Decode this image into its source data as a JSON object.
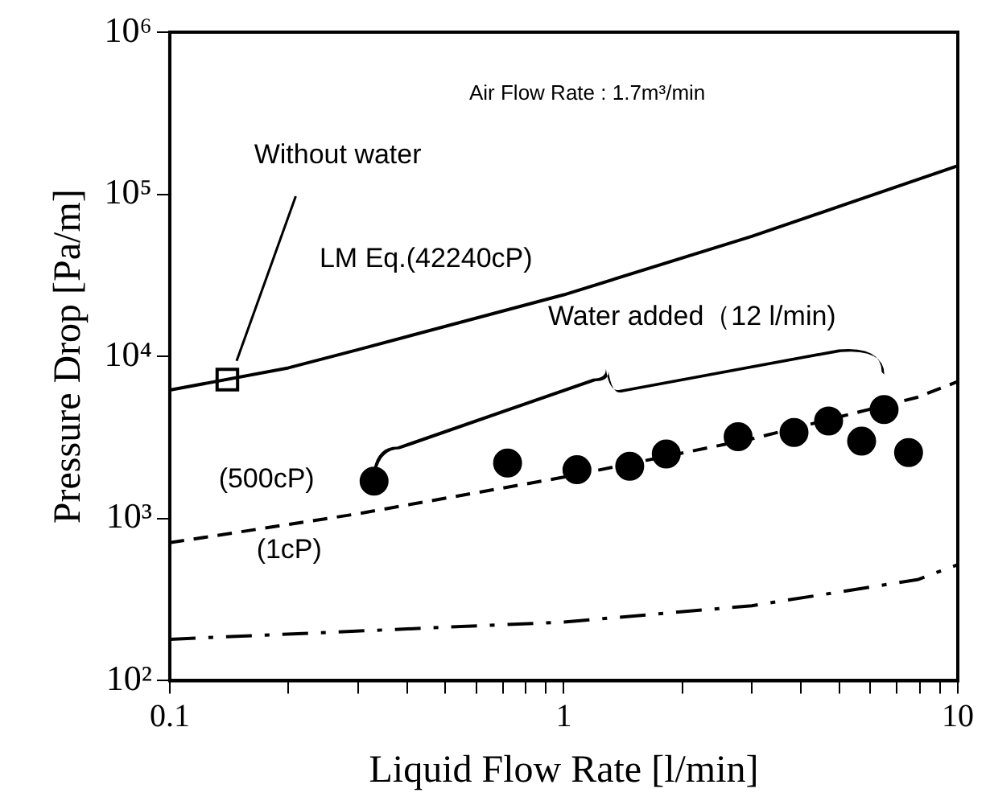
{
  "chart_data": {
    "type": "line",
    "xlabel": "Liquid Flow Rate [l/min]",
    "ylabel": "Pressure Drop [Pa/m]",
    "log": "xy",
    "grid": false,
    "legend": false,
    "xlim": [
      0.1,
      10
    ],
    "ylim": [
      100,
      1000000
    ],
    "xticks": [
      0.1,
      {
        "value": 0.2,
        "label": null
      },
      {
        "value": 0.3,
        "label": null
      },
      {
        "value": 0.4,
        "label": null
      },
      {
        "value": 0.5,
        "label": null
      },
      {
        "value": 0.6,
        "label": null
      },
      {
        "value": 0.7,
        "label": null
      },
      {
        "value": 0.8,
        "label": null
      },
      {
        "value": 0.9,
        "label": null
      },
      1,
      {
        "value": 2,
        "label": null
      },
      {
        "value": 3,
        "label": null
      },
      {
        "value": 4,
        "label": null
      },
      {
        "value": 5,
        "label": null
      },
      {
        "value": 6,
        "label": null
      },
      {
        "value": 7,
        "label": null
      },
      {
        "value": 8,
        "label": null
      },
      {
        "value": 9,
        "label": null
      },
      10
    ],
    "yticks": [
      {
        "value": 100,
        "label": "10²"
      },
      {
        "value": 1000,
        "label": "10³"
      },
      {
        "value": 10000,
        "label": "10⁴"
      },
      {
        "value": 100000,
        "label": "10⁵"
      },
      {
        "value": 1000000,
        "label": "10⁶"
      }
    ],
    "series": [
      {
        "color": "#000000",
        "line_style": "solid",
        "marker": "none",
        "x": [
          0.1,
          0.2,
          0.3,
          1,
          3,
          10
        ],
        "values": [
          6200,
          8500,
          11000,
          24000,
          55000,
          150000
        ]
      },
      {
        "color": "#000000",
        "line_style": "dashed",
        "marker": "none",
        "x": [
          0.1,
          0.3,
          1,
          3,
          7.9,
          10
        ],
        "values": [
          710,
          1070,
          1800,
          3100,
          5600,
          7000
        ]
      },
      {
        "color": "#000000",
        "line_style": "dashdot",
        "marker": "none",
        "x": [
          0.1,
          1,
          3,
          7.9,
          10
        ],
        "values": [
          180,
          230,
          290,
          420,
          520
        ]
      },
      {
        "type": "scatter",
        "color": "#ffffff",
        "marker": "square",
        "x": [
          0.14
        ],
        "values": [
          7200
        ]
      },
      {
        "type": "scatter",
        "color": "#000000",
        "marker": "circle",
        "x": [
          0.33,
          0.72,
          1.08,
          1.47,
          1.82,
          2.77,
          3.84,
          4.7,
          6.5,
          5.7,
          7.5
        ],
        "values": [
          1700,
          2200,
          2000,
          2100,
          2500,
          3200,
          3400,
          4000,
          4700,
          3000,
          2550
        ]
      }
    ],
    "annotations": [
      "Air Flow Rate : 1.7m³/min",
      "Without water",
      "LM Eq.(42240cP)",
      "Water added（12 l/min)",
      "(500cP)",
      "(1cP)"
    ]
  }
}
